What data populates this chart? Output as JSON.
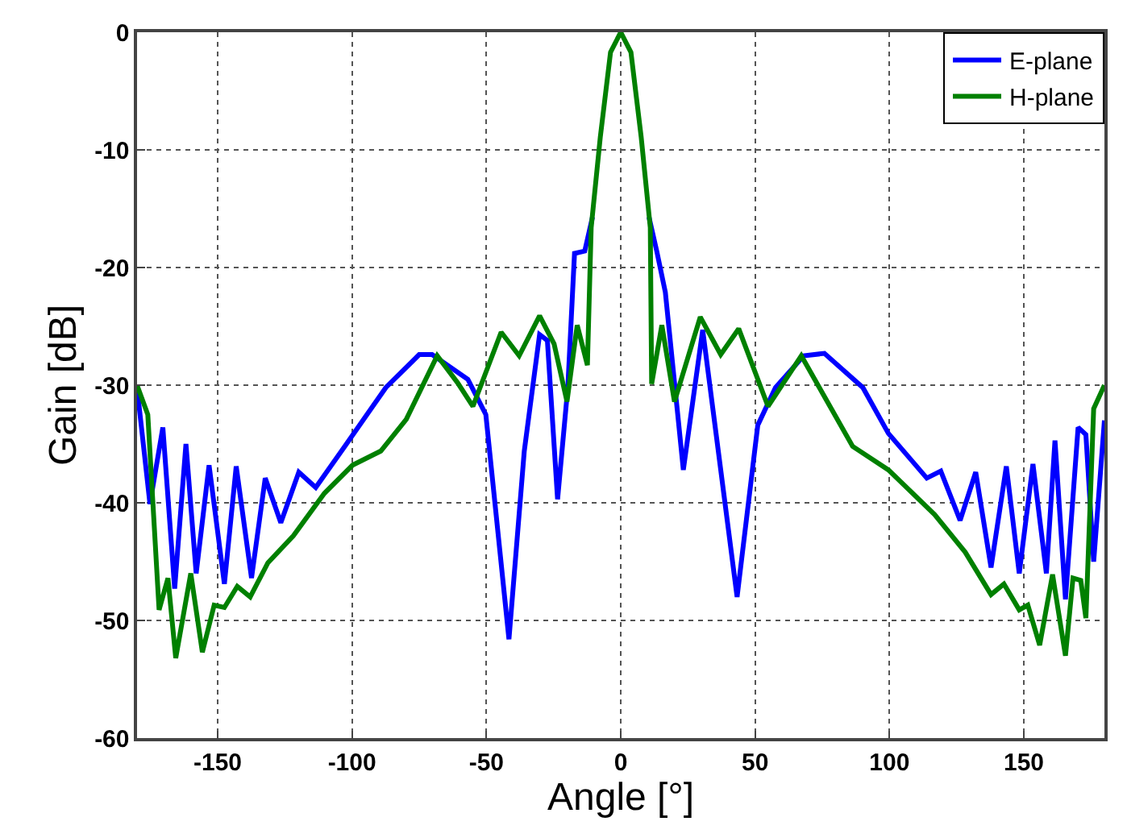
{
  "chart_data": {
    "type": "line",
    "xlabel": "Angle [°]",
    "ylabel": "Gain [dB]",
    "xlim": [
      -180,
      180
    ],
    "ylim": [
      -60,
      0
    ],
    "xticks": [
      -150,
      -100,
      -50,
      0,
      50,
      100,
      150
    ],
    "yticks": [
      -60,
      -50,
      -40,
      -30,
      -20,
      -10,
      0
    ],
    "grid": true,
    "legend": "top right",
    "marker": "none",
    "line_style": "solid",
    "series": [
      {
        "name": "E-plane",
        "color": "#0000ff",
        "x": [
          -180,
          -175.2,
          -170.4,
          -166,
          -161.8,
          -158,
          -153.2,
          -147.5,
          -143.1,
          -137.4,
          -132.3,
          -126.5,
          -119.8,
          -113.5,
          -102.7,
          -87.4,
          -75,
          -70.2,
          -56.9,
          -50.2,
          -41.6,
          -35.9,
          -30.2,
          -27.3,
          -23.5,
          -19.7,
          -17.2,
          -13.4,
          -10.5,
          -7.6,
          -3.8,
          0,
          3.8,
          7.6,
          10.5,
          13.4,
          16.6,
          23.3,
          30.5,
          43.3,
          51,
          57.6,
          68.1,
          75.8,
          90.1,
          99.6,
          113.9,
          119.1,
          126.3,
          132.1,
          137.8,
          143.5,
          148.3,
          153.4,
          158.4,
          161.6,
          165.5,
          170.2,
          173.1,
          176,
          180
        ],
        "values": [
          -30.2,
          -40.1,
          -33.6,
          -47.3,
          -35,
          -46,
          -36.8,
          -46.9,
          -36.9,
          -46.4,
          -37.9,
          -41.7,
          -37.4,
          -38.7,
          -35.2,
          -30.2,
          -27.4,
          -27.4,
          -29.5,
          -32.5,
          -51.6,
          -35.6,
          -25.7,
          -26.2,
          -39.7,
          -30.2,
          -18.8,
          -18.6,
          -15.7,
          null,
          null,
          null,
          null,
          null,
          -15.7,
          -18.6,
          -22.1,
          -37.2,
          -25.3,
          -48,
          -33.4,
          -30.2,
          -27.5,
          -27.3,
          -30.2,
          -34.1,
          -37.9,
          -37.3,
          -41.5,
          -37.4,
          -45.5,
          -36.9,
          -46,
          -36.7,
          -46,
          -34.7,
          -48.2,
          -33.6,
          -34.2,
          -45,
          -33
        ]
      },
      {
        "name": "H-plane",
        "color": "#008000",
        "x": [
          -180,
          -176,
          -171.8,
          -168.5,
          -165.6,
          -160,
          -155.7,
          -151.3,
          -147.5,
          -142.7,
          -137.9,
          -131.3,
          -121.8,
          -110.3,
          -99.8,
          -89.3,
          -79.8,
          -68.3,
          -60.7,
          -55,
          -44.5,
          -37.8,
          -30.2,
          -24.8,
          -20,
          -16.2,
          -12.4,
          -11,
          -7.6,
          -3.8,
          0,
          3.8,
          7.6,
          11,
          11.5,
          15.3,
          20,
          29.6,
          37.2,
          43.9,
          54.8,
          67.2,
          86.3,
          99.6,
          116.8,
          128.2,
          137.8,
          142.6,
          148.3,
          151.5,
          155.9,
          160.7,
          165.5,
          168.3,
          171.2,
          173.1,
          176,
          180
        ],
        "values": [
          -30,
          -32.5,
          -49.1,
          -46.4,
          -53.2,
          -46,
          -52.7,
          -48.7,
          -48.9,
          -47.1,
          -48,
          -45.1,
          -42.8,
          -39.2,
          -36.8,
          -35.6,
          -32.9,
          -27.5,
          -29.8,
          -31.8,
          -25.5,
          -27.5,
          -24.1,
          -26.5,
          -31.4,
          -24.9,
          -28.3,
          -16.6,
          -8.9,
          -1.7,
          0,
          -1.7,
          -8.9,
          -16.6,
          -29.9,
          -24.9,
          -31.4,
          -24.2,
          -27.4,
          -25.2,
          -31.8,
          -27.5,
          -35.2,
          -37.2,
          -41,
          -44.2,
          -47.8,
          -46.9,
          -49.1,
          -48.7,
          -52.1,
          -46.1,
          -53,
          -46.4,
          -46.6,
          -49.8,
          -32,
          -30
        ]
      }
    ]
  }
}
